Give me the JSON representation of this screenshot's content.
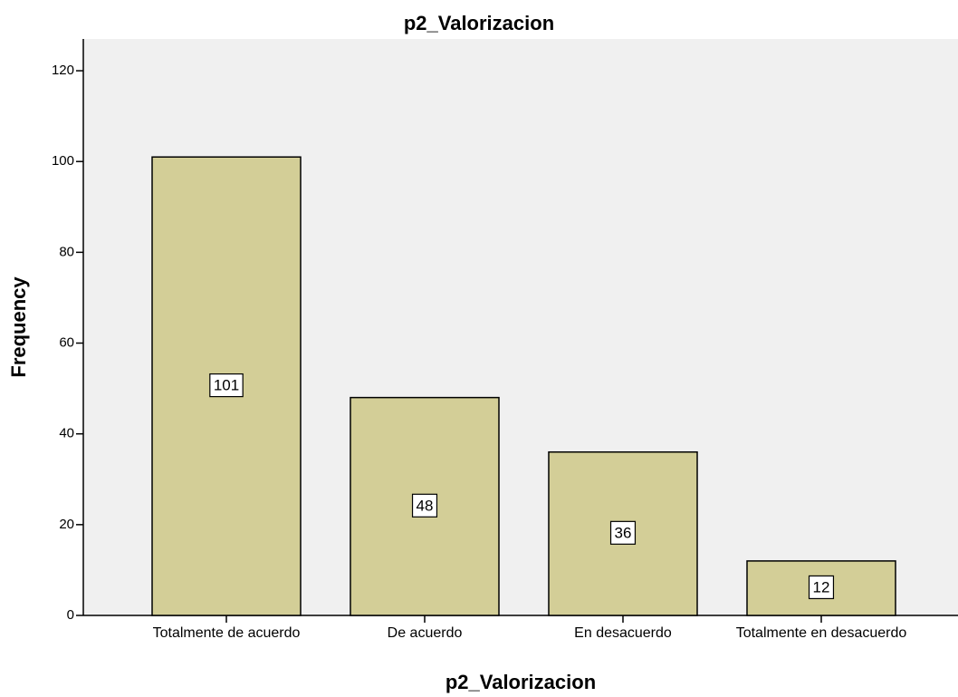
{
  "chart_data": {
    "type": "bar",
    "title": "p2_Valorizacion",
    "x_label": "p2_Valorizacion",
    "y_label": "Frequency",
    "categories": [
      "Totalmente de acuerdo",
      "De acuerdo",
      "En desacuerdo",
      "Totalmente en desacuerdo"
    ],
    "values": [
      101,
      48,
      36,
      12
    ],
    "color": "#d3ce97",
    "ylim": [
      0,
      127
    ],
    "yticks": [
      0,
      20,
      40,
      60,
      80,
      100,
      120
    ],
    "grid": false
  }
}
